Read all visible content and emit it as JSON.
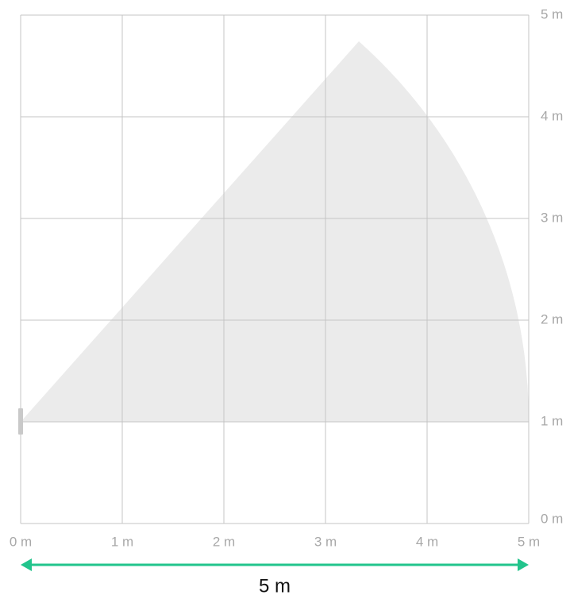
{
  "x_axis": {
    "labels": [
      "0 m",
      "1 m",
      "2 m",
      "3 m",
      "4 m",
      "5 m"
    ]
  },
  "y_axis": {
    "labels": [
      "0 m",
      "1 m",
      "2 m",
      "3 m",
      "4 m",
      "5 m"
    ]
  },
  "dimension": {
    "label": "5 m"
  }
}
